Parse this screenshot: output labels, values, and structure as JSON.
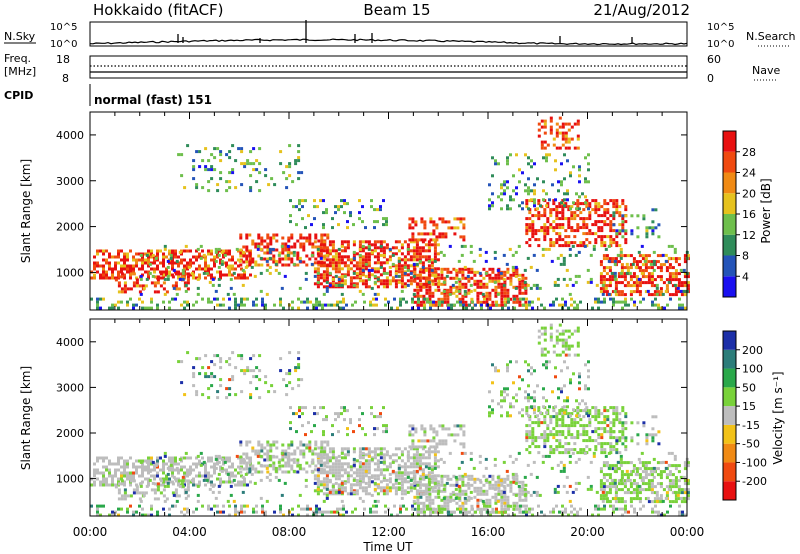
{
  "header": {
    "station": "Hokkaido (fitACF)",
    "beam": "Beam 15",
    "date": "21/Aug/2012"
  },
  "noise_panel": {
    "left_label": "N.Sky",
    "right_label": "N.Search",
    "left_ticks": [
      "10^5",
      "10^0"
    ],
    "right_ticks": [
      "10^5",
      "10^0"
    ]
  },
  "freq_panel": {
    "left_label_1": "Freq.",
    "left_label_2": "[MHz]",
    "right_label": "Nave",
    "left_ticks": [
      "18",
      "8"
    ],
    "right_ticks": [
      "60",
      "0"
    ]
  },
  "cpid_panel": {
    "label": "CPID",
    "mode_text": "normal (fast) 151"
  },
  "chart_data": [
    {
      "type": "heatmap",
      "ylabel": "Slant Range [km]",
      "xlabel": "",
      "x_ticks": [
        "00:00",
        "04:00",
        "08:00",
        "12:00",
        "16:00",
        "20:00",
        "00:00"
      ],
      "xlim_hours": [
        0,
        24
      ],
      "ylim": [
        180,
        4500
      ],
      "y_ticks": [
        1000,
        2000,
        3000,
        4000
      ],
      "colorbar": {
        "label": "Power [dB]",
        "ticks": [
          "4",
          "8",
          "12",
          "16",
          "20",
          "24",
          "28"
        ],
        "colors": [
          "#1a10f0",
          "#2454b8",
          "#2f8c5a",
          "#6ebf4c",
          "#e6c21e",
          "#f08a14",
          "#f04a10",
          "#e81010"
        ]
      }
    },
    {
      "type": "heatmap",
      "ylabel": "Slant Range [km]",
      "xlabel": "Time UT",
      "x_ticks": [
        "00:00",
        "04:00",
        "08:00",
        "12:00",
        "16:00",
        "20:00",
        "00:00"
      ],
      "xlim_hours": [
        0,
        24
      ],
      "ylim": [
        180,
        4500
      ],
      "y_ticks": [
        1000,
        2000,
        3000,
        4000
      ],
      "colorbar": {
        "label": "Velocity [m s⁻¹]",
        "ticks": [
          "200",
          "100",
          "50",
          "15",
          "-15",
          "-50",
          "-100",
          "-200"
        ],
        "colors": [
          "#1c2fa8",
          "#2c7d7a",
          "#2aa84a",
          "#79d23a",
          "#bdbdbd",
          "#f2c218",
          "#f08a14",
          "#f04a10",
          "#e81010"
        ]
      }
    }
  ]
}
